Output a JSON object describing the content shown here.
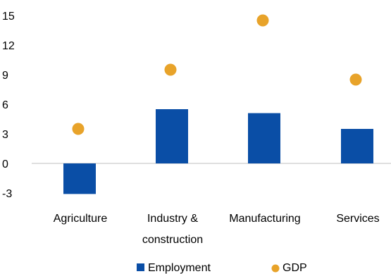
{
  "chart_data": {
    "type": "bar",
    "categories": [
      "Agriculture",
      "Industry & construction",
      "Manufacturing",
      "Services"
    ],
    "category_label_lines": [
      [
        "Agriculture"
      ],
      [
        "Industry &",
        "construction"
      ],
      [
        "Manufacturing"
      ],
      [
        "Services"
      ]
    ],
    "series": [
      {
        "name": "Employment",
        "kind": "bar",
        "color": "#0a4ea6",
        "values": [
          -3.1,
          5.5,
          5.1,
          3.5
        ]
      },
      {
        "name": "GDP",
        "kind": "marker",
        "color": "#e8a32a",
        "values": [
          3.5,
          9.5,
          14.5,
          8.5
        ]
      }
    ],
    "yticks": [
      15,
      12,
      9,
      6,
      3,
      0,
      -3
    ],
    "ytick_labels": [
      "15",
      "12",
      "9",
      "6",
      "3",
      "0",
      "-3"
    ],
    "ylim": [
      -4,
      16
    ],
    "legend_position": "bottom",
    "title": "",
    "xlabel": "",
    "ylabel": ""
  }
}
